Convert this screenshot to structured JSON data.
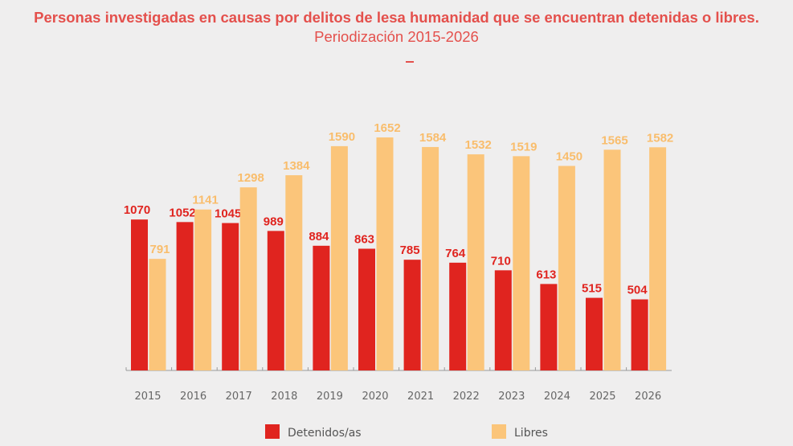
{
  "chart_data": {
    "type": "bar",
    "title_bold": "Personas investigadas en causas por delitos de lesa humanidad que se encuentran detenidas o libres.",
    "title_light": "Periodización 2015-2026",
    "categories": [
      "2015",
      "2016",
      "2017",
      "2018",
      "2019",
      "2020",
      "2021",
      "2022",
      "2023",
      "2024",
      "2025",
      "2026"
    ],
    "series": [
      {
        "name": "Detenidos/as",
        "color": "#e0241f",
        "values": [
          1070,
          1052,
          1045,
          989,
          884,
          863,
          785,
          764,
          710,
          613,
          515,
          504
        ]
      },
      {
        "name": "Libres",
        "color": "#fbc57a",
        "values": [
          791,
          1141,
          1298,
          1384,
          1590,
          1652,
          1584,
          1532,
          1519,
          1450,
          1565,
          1582
        ]
      }
    ],
    "ylim": [
      0,
      1652
    ],
    "grid": false,
    "legend_placement": "bottom",
    "xlabel": "",
    "ylabel": ""
  }
}
